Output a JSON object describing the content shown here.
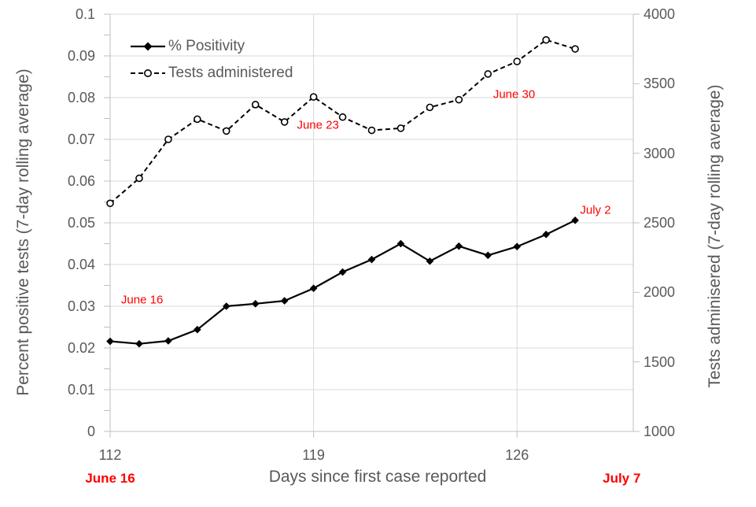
{
  "chart_data": {
    "type": "line",
    "title": "",
    "x_axis": {
      "label": "Days since first case reported",
      "range": [
        112,
        130
      ],
      "tick_days": [
        112,
        119,
        126
      ],
      "tick_labels": [
        "112",
        "119",
        "126"
      ],
      "gridline_days": [
        119,
        126
      ]
    },
    "y_left_axis": {
      "label": "Percent positive tests (7-day rolling average)",
      "range": [
        0,
        0.1
      ],
      "major_tick_step": 0.01,
      "minor_tick_step": 0.005,
      "tick_labels": [
        "0",
        "0.01",
        "0.02",
        "0.03",
        "0.04",
        "0.05",
        "0.06",
        "0.07",
        "0.08",
        "0.09",
        "0.1"
      ]
    },
    "y_right_axis": {
      "label": "Tests adminisered (7-day rolling average)",
      "range": [
        1000,
        4000
      ],
      "tick_step": 500,
      "tick_labels": [
        "1000",
        "1500",
        "2000",
        "2500",
        "3000",
        "3500",
        "4000"
      ]
    },
    "x": [
      112,
      113,
      114,
      115,
      116,
      117,
      118,
      119,
      120,
      121,
      122,
      123,
      124,
      125,
      126,
      127,
      128
    ],
    "series": [
      {
        "name": "% Positivity",
        "axis": "left",
        "line_style": "solid",
        "marker": "filled-diamond",
        "color": "#000000",
        "values": [
          0.0216,
          0.021,
          0.0217,
          0.0244,
          0.03,
          0.0306,
          0.0313,
          0.0343,
          0.0382,
          0.0412,
          0.045,
          0.0408,
          0.0444,
          0.0422,
          0.0443,
          0.0472,
          0.0506
        ]
      },
      {
        "name": "Tests administered",
        "axis": "right",
        "line_style": "dashed",
        "marker": "open-circle",
        "color": "#000000",
        "values": [
          2640,
          2820,
          3100,
          3245,
          3160,
          3350,
          3225,
          3405,
          3260,
          3165,
          3180,
          3330,
          3385,
          3570,
          3660,
          3815,
          3750
        ]
      }
    ],
    "legend_position": "top-left-inside",
    "grid": true
  },
  "annotations": {
    "in_plot": [
      {
        "text": "June 16",
        "day": 113.1,
        "value_left": 0.0315
      },
      {
        "text": "June 23",
        "day": 119.15,
        "value_left": 0.0734
      },
      {
        "text": "June 30",
        "day": 125.9,
        "value_left": 0.0808
      },
      {
        "text": "July 2",
        "day": 128.7,
        "value_left": 0.053
      }
    ],
    "below_axis": [
      {
        "text": "June 16",
        "day": 112
      },
      {
        "text": "July 7",
        "day": 129.6
      }
    ]
  },
  "colors": {
    "background": "#FFFFFF",
    "axis_text": "#595959",
    "gridline": "#D9D9D9",
    "axis_line": "#BFBFBF",
    "series": "#000000",
    "annotation": "#FF0000"
  }
}
